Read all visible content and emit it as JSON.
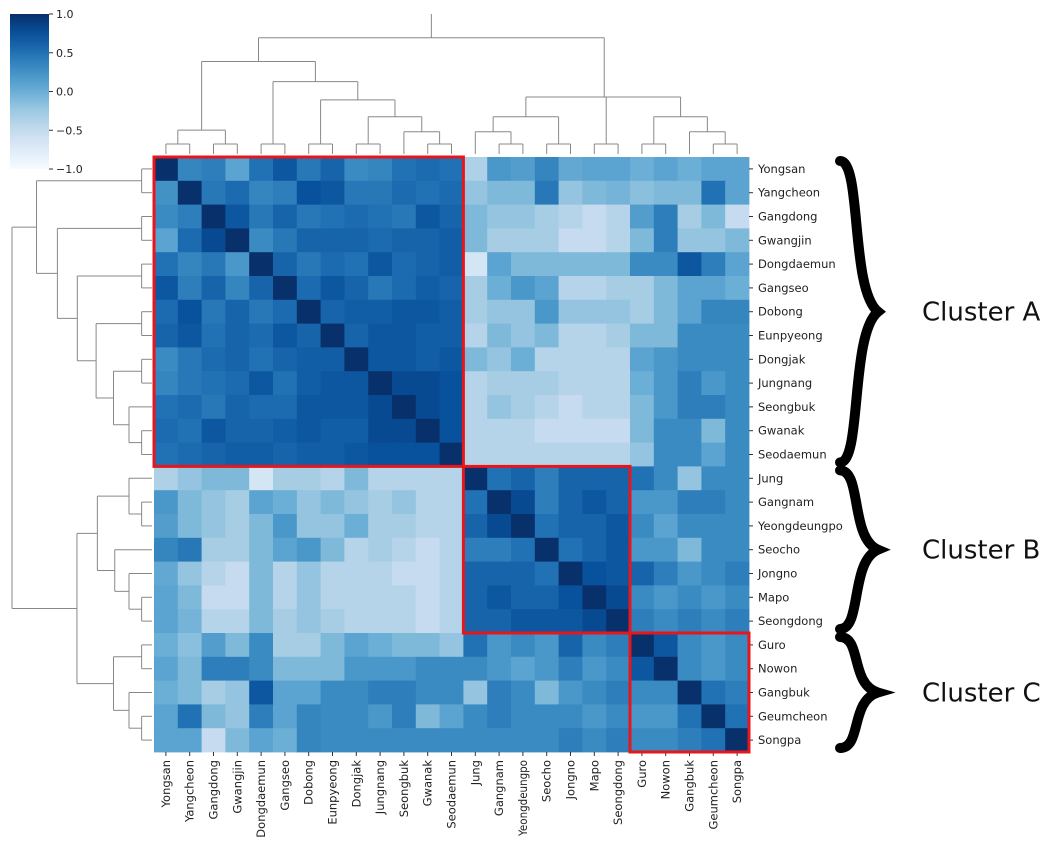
{
  "chart_data": {
    "type": "heatmap",
    "labels": [
      "Yongsan",
      "Yangcheon",
      "Gangdong",
      "Gwangjin",
      "Dongdaemun",
      "Gangseo",
      "Dobong",
      "Eunpyeong",
      "Dongjak",
      "Jungnang",
      "Seongbuk",
      "Gwanak",
      "Seodaemun",
      "Jung",
      "Gangnam",
      "Yeongdeungpo",
      "Seocho",
      "Jongno",
      "Mapo",
      "Seongdong",
      "Guro",
      "Nowon",
      "Gangbuk",
      "Geumcheon",
      "Songpa"
    ],
    "values": [
      [
        1.0,
        0.35,
        0.4,
        0.1,
        0.5,
        0.7,
        0.45,
        0.6,
        0.3,
        0.35,
        0.5,
        0.55,
        0.5,
        -0.35,
        0.2,
        0.15,
        0.35,
        0.05,
        0.1,
        0.1,
        0.0,
        0.1,
        0.0,
        0.1,
        0.1
      ],
      [
        0.25,
        1.0,
        0.45,
        0.55,
        0.35,
        0.4,
        0.75,
        0.7,
        0.45,
        0.45,
        0.55,
        0.5,
        0.55,
        -0.2,
        -0.1,
        -0.1,
        0.45,
        -0.2,
        -0.1,
        -0.05,
        -0.15,
        -0.1,
        -0.1,
        0.5,
        0.1
      ],
      [
        0.3,
        0.4,
        1.0,
        0.7,
        0.45,
        0.6,
        0.45,
        0.5,
        0.55,
        0.5,
        0.45,
        0.7,
        0.6,
        -0.1,
        -0.2,
        -0.2,
        -0.3,
        -0.4,
        -0.5,
        -0.4,
        0.15,
        0.4,
        -0.3,
        -0.1,
        -0.5
      ],
      [
        0.1,
        0.55,
        0.8,
        1.0,
        0.3,
        0.45,
        0.6,
        0.6,
        0.6,
        0.55,
        0.6,
        0.6,
        0.65,
        -0.1,
        -0.3,
        -0.3,
        -0.3,
        -0.5,
        -0.5,
        -0.4,
        -0.1,
        0.4,
        -0.2,
        -0.2,
        -0.1
      ],
      [
        0.5,
        0.35,
        0.45,
        0.2,
        1.0,
        0.6,
        0.45,
        0.55,
        0.5,
        0.7,
        0.55,
        0.6,
        0.65,
        -0.65,
        0.1,
        -0.1,
        -0.1,
        -0.1,
        -0.1,
        -0.1,
        0.3,
        0.3,
        0.7,
        0.4,
        0.1
      ],
      [
        0.7,
        0.4,
        0.6,
        0.35,
        0.6,
        1.0,
        0.55,
        0.7,
        0.6,
        0.45,
        0.55,
        0.65,
        0.6,
        -0.3,
        0.0,
        0.2,
        0.1,
        -0.4,
        -0.4,
        -0.3,
        -0.3,
        -0.1,
        0.1,
        0.1,
        0.0
      ],
      [
        0.55,
        0.75,
        0.45,
        0.6,
        0.45,
        0.55,
        1.0,
        0.6,
        0.65,
        0.65,
        0.7,
        0.7,
        0.65,
        -0.3,
        -0.2,
        -0.2,
        0.2,
        -0.2,
        -0.2,
        -0.2,
        -0.3,
        -0.1,
        0.1,
        0.35,
        0.35
      ],
      [
        0.6,
        0.7,
        0.5,
        0.6,
        0.55,
        0.7,
        0.6,
        1.0,
        0.6,
        0.7,
        0.7,
        0.65,
        0.65,
        -0.4,
        -0.1,
        -0.2,
        -0.1,
        -0.4,
        -0.4,
        -0.3,
        -0.1,
        -0.1,
        0.3,
        0.3,
        0.3
      ],
      [
        0.3,
        0.45,
        0.55,
        0.6,
        0.5,
        0.6,
        0.65,
        0.65,
        1.0,
        0.7,
        0.7,
        0.65,
        0.7,
        -0.1,
        -0.2,
        0.0,
        -0.4,
        -0.4,
        -0.4,
        -0.4,
        0.1,
        0.2,
        0.3,
        0.3,
        0.3
      ],
      [
        0.35,
        0.45,
        0.5,
        0.55,
        0.7,
        0.5,
        0.65,
        0.7,
        0.7,
        1.0,
        0.8,
        0.8,
        0.75,
        -0.4,
        -0.3,
        -0.3,
        -0.3,
        -0.4,
        -0.4,
        -0.4,
        0.0,
        0.2,
        0.4,
        0.2,
        0.3
      ],
      [
        0.5,
        0.55,
        0.45,
        0.6,
        0.55,
        0.55,
        0.7,
        0.7,
        0.7,
        0.8,
        1.0,
        0.8,
        0.75,
        -0.4,
        -0.2,
        -0.3,
        -0.4,
        -0.5,
        -0.4,
        -0.4,
        -0.1,
        0.2,
        0.4,
        0.4,
        0.3
      ],
      [
        0.55,
        0.5,
        0.7,
        0.6,
        0.6,
        0.65,
        0.7,
        0.65,
        0.65,
        0.8,
        0.8,
        1.0,
        0.75,
        -0.4,
        -0.4,
        -0.4,
        -0.5,
        -0.5,
        -0.5,
        -0.5,
        -0.1,
        0.3,
        0.3,
        -0.1,
        0.3
      ],
      [
        0.5,
        0.55,
        0.6,
        0.65,
        0.65,
        0.6,
        0.65,
        0.65,
        0.7,
        0.75,
        0.75,
        0.75,
        1.0,
        -0.4,
        -0.4,
        -0.4,
        -0.4,
        -0.4,
        -0.4,
        -0.4,
        -0.2,
        0.3,
        0.3,
        0.1,
        0.3
      ],
      [
        -0.35,
        -0.2,
        -0.1,
        -0.1,
        -0.65,
        -0.3,
        -0.3,
        -0.4,
        -0.1,
        -0.4,
        -0.4,
        -0.4,
        -0.4,
        1.0,
        0.5,
        0.6,
        0.4,
        0.6,
        0.6,
        0.6,
        0.5,
        0.3,
        -0.2,
        0.3,
        0.3
      ],
      [
        0.2,
        -0.1,
        -0.2,
        -0.3,
        0.1,
        0.0,
        -0.2,
        -0.1,
        -0.2,
        -0.3,
        -0.2,
        -0.4,
        -0.4,
        0.5,
        1.0,
        0.8,
        0.4,
        0.6,
        0.7,
        0.6,
        0.2,
        0.2,
        0.4,
        0.4,
        0.3
      ],
      [
        0.15,
        -0.1,
        -0.2,
        -0.3,
        -0.1,
        0.2,
        -0.2,
        -0.2,
        0.0,
        -0.3,
        -0.3,
        -0.4,
        -0.4,
        0.6,
        0.8,
        1.0,
        0.5,
        0.6,
        0.6,
        0.7,
        0.3,
        0.1,
        0.3,
        0.3,
        0.3
      ],
      [
        0.35,
        0.45,
        -0.3,
        -0.3,
        -0.1,
        0.1,
        0.2,
        -0.1,
        -0.4,
        -0.3,
        -0.4,
        -0.5,
        -0.4,
        0.4,
        0.4,
        0.5,
        1.0,
        0.5,
        0.6,
        0.7,
        0.2,
        0.2,
        -0.1,
        0.3,
        0.3
      ],
      [
        0.05,
        -0.2,
        -0.4,
        -0.5,
        -0.1,
        -0.4,
        -0.2,
        -0.4,
        -0.4,
        -0.4,
        -0.5,
        -0.5,
        -0.4,
        0.6,
        0.6,
        0.6,
        0.5,
        1.0,
        0.75,
        0.7,
        0.6,
        0.4,
        0.2,
        0.3,
        0.4
      ],
      [
        0.1,
        -0.1,
        -0.5,
        -0.5,
        -0.1,
        -0.4,
        -0.2,
        -0.4,
        -0.4,
        -0.4,
        -0.4,
        -0.5,
        -0.4,
        0.6,
        0.7,
        0.6,
        0.6,
        0.75,
        1.0,
        0.8,
        0.3,
        0.2,
        0.3,
        0.2,
        0.3
      ],
      [
        0.1,
        -0.05,
        -0.4,
        -0.4,
        -0.1,
        -0.3,
        -0.2,
        -0.3,
        -0.4,
        -0.4,
        -0.4,
        -0.5,
        -0.4,
        0.6,
        0.6,
        0.7,
        0.7,
        0.7,
        0.8,
        1.0,
        0.4,
        0.3,
        0.4,
        0.3,
        0.4
      ],
      [
        0.0,
        -0.15,
        0.15,
        -0.1,
        0.3,
        -0.3,
        -0.3,
        -0.1,
        0.1,
        0.0,
        -0.1,
        -0.1,
        -0.2,
        0.5,
        0.2,
        0.3,
        0.2,
        0.6,
        0.3,
        0.4,
        1.0,
        0.7,
        0.3,
        0.2,
        0.3
      ],
      [
        0.1,
        -0.1,
        0.4,
        0.4,
        0.3,
        -0.1,
        -0.1,
        -0.1,
        0.2,
        0.2,
        0.2,
        0.3,
        0.3,
        0.3,
        0.2,
        0.1,
        0.2,
        0.4,
        0.2,
        0.3,
        0.7,
        1.0,
        0.3,
        0.2,
        0.3
      ],
      [
        0.0,
        -0.1,
        -0.3,
        -0.2,
        0.7,
        0.1,
        0.1,
        0.3,
        0.3,
        0.4,
        0.4,
        0.3,
        0.3,
        -0.2,
        0.4,
        0.3,
        -0.1,
        0.2,
        0.3,
        0.4,
        0.3,
        0.3,
        1.0,
        0.5,
        0.4
      ],
      [
        0.1,
        0.5,
        -0.1,
        -0.2,
        0.4,
        0.1,
        0.35,
        0.3,
        0.3,
        0.2,
        0.4,
        -0.1,
        0.1,
        0.3,
        0.4,
        0.3,
        0.3,
        0.3,
        0.2,
        0.3,
        0.2,
        0.2,
        0.5,
        1.0,
        0.5
      ],
      [
        0.1,
        0.1,
        -0.5,
        -0.1,
        0.1,
        0.0,
        0.35,
        0.3,
        0.3,
        0.3,
        0.3,
        0.3,
        0.3,
        0.3,
        0.3,
        0.3,
        0.3,
        0.4,
        0.3,
        0.4,
        0.3,
        0.3,
        0.4,
        0.5,
        1.0
      ]
    ],
    "colorbar": {
      "ticks": [
        "1.0",
        "0.5",
        "0.0",
        "−0.5",
        "−1.0"
      ],
      "range": [
        -1,
        1
      ]
    },
    "clusters": [
      {
        "name": "Cluster A",
        "range": [
          0,
          12
        ]
      },
      {
        "name": "Cluster B",
        "range": [
          13,
          19
        ]
      },
      {
        "name": "Cluster C",
        "range": [
          20,
          24
        ]
      }
    ],
    "colors": {
      "cmap_low": "#f7fbff",
      "cmap_high": "#08306b",
      "cluster_box": "#e8151b"
    }
  }
}
